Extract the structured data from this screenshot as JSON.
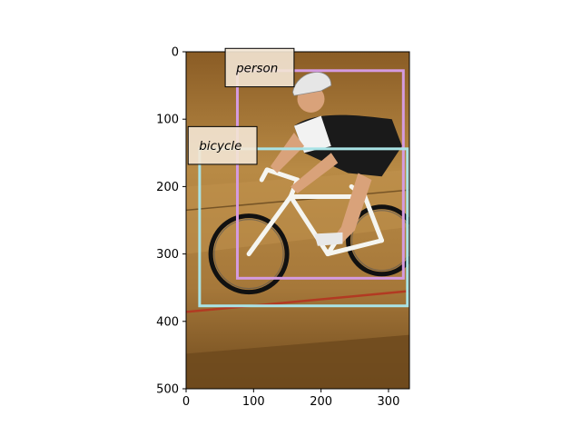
{
  "figure": {
    "image": {
      "subject": "cyclist in white and black kit riding a white road bicycle on a wooden velodrome track",
      "width": 331,
      "height": 500,
      "colors": {
        "track_light": "#b88a45",
        "track_dark": "#6f4a1d",
        "track_line_red": "#b23a22",
        "skin": "#d9a27a",
        "kit_black": "#1a1a1a",
        "kit_white": "#f2f2f2",
        "bike_white": "#f5f5f0"
      }
    },
    "axes": {
      "xlim": [
        0,
        331
      ],
      "ylim": [
        500,
        0
      ],
      "x_ticks": [
        0,
        100,
        200,
        300
      ],
      "y_ticks": [
        0,
        100,
        200,
        300,
        400,
        500
      ],
      "x_tick_labels": [
        "0",
        "100",
        "200",
        "300"
      ],
      "y_tick_labels": [
        "0",
        "100",
        "200",
        "300",
        "400",
        "500"
      ]
    },
    "boxes": [
      {
        "label": "person",
        "color": "#d49be0",
        "bbox_data": {
          "x0": 76,
          "y0": 28,
          "x1": 322,
          "y1": 336
        },
        "tag_data": {
          "x0": 58,
          "y0": -5,
          "x1": 160,
          "y1": 52
        }
      },
      {
        "label": "bicycle",
        "color": "#a9e3e6",
        "bbox_data": {
          "x0": 20,
          "y0": 144,
          "x1": 328,
          "y1": 377
        },
        "tag_data": {
          "x0": 3,
          "y0": 111,
          "x1": 105,
          "y1": 167
        }
      }
    ]
  }
}
